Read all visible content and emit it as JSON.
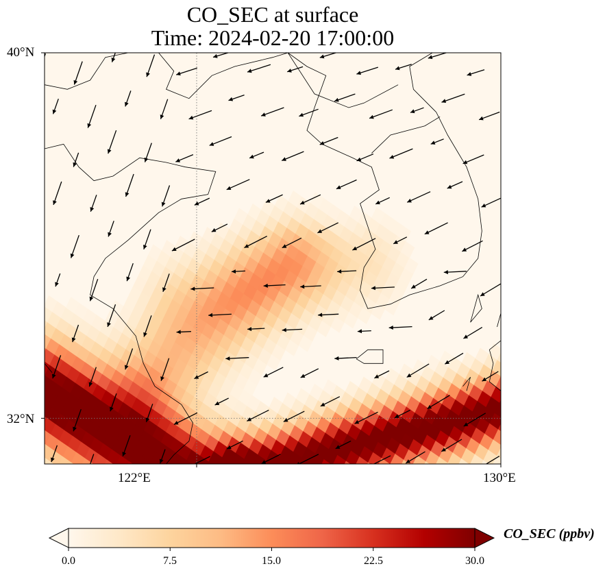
{
  "title": {
    "line1": "CO_SEC at surface",
    "line2": "Time: 2024-02-20 17:00:00"
  },
  "map": {
    "lon_range": [
      118,
      130
    ],
    "lat_range": [
      31,
      40
    ],
    "x_ticks": [
      {
        "lon": 122,
        "label": "122°E"
      },
      {
        "lon": 130,
        "label": "130°E"
      }
    ],
    "y_ticks": [
      {
        "lat": 40,
        "label": "40°N"
      },
      {
        "lat": 32,
        "label": "32°N"
      }
    ],
    "gridlines": {
      "lon": 122,
      "lat": 32,
      "style": "dotted"
    },
    "features": [
      "coastlines",
      "wind-vectors",
      "filled-concentration-field"
    ]
  },
  "colorbar": {
    "label": "CO_SEC (ppbv)",
    "min": 0,
    "max": 30,
    "ticks": [
      "0.0",
      "7.5",
      "15.0",
      "22.5",
      "30.0"
    ],
    "colormap": "OrRd",
    "extend": "both",
    "colors": [
      "#fff7ec",
      "#fee8c8",
      "#fdd49e",
      "#fdbb84",
      "#fc8d59",
      "#ef6548",
      "#d7301f",
      "#b30000",
      "#7f0000"
    ]
  }
}
